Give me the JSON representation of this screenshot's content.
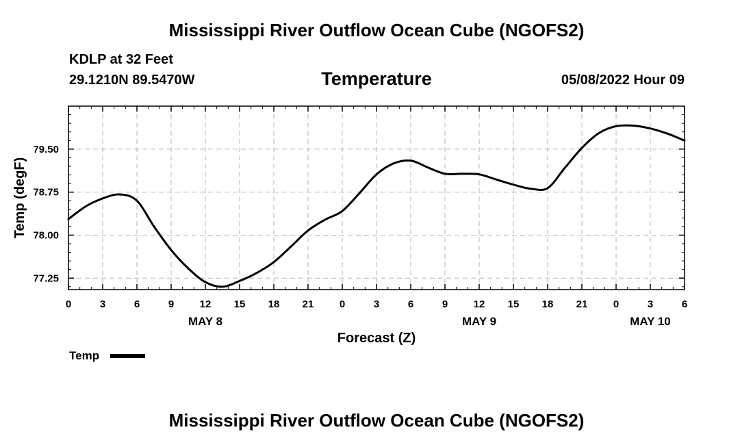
{
  "header": {
    "title": "Mississippi River Outflow Ocean Cube (NGOFS2)",
    "station": "KDLP at 32 Feet",
    "coords": "29.1210N  89.5470W",
    "variable": "Temperature",
    "run_time": "05/08/2022 Hour 09"
  },
  "footer": {
    "title": "Mississippi River Outflow Ocean Cube (NGOFS2)"
  },
  "chart_data": {
    "type": "line",
    "title": "Temperature",
    "xlabel": "Forecast (Z)",
    "ylabel": "Temp (degF)",
    "x_unit": "hours since May 8 00Z",
    "xlim": [
      0,
      54
    ],
    "ylim": [
      77.05,
      80.25
    ],
    "grid": true,
    "x_ticks": [
      {
        "value": 0,
        "label": "0"
      },
      {
        "value": 3,
        "label": "3"
      },
      {
        "value": 6,
        "label": "6"
      },
      {
        "value": 9,
        "label": "9"
      },
      {
        "value": 12,
        "label": "12"
      },
      {
        "value": 15,
        "label": "15"
      },
      {
        "value": 18,
        "label": "18"
      },
      {
        "value": 21,
        "label": "21"
      },
      {
        "value": 24,
        "label": "0"
      },
      {
        "value": 27,
        "label": "3"
      },
      {
        "value": 30,
        "label": "6"
      },
      {
        "value": 33,
        "label": "9"
      },
      {
        "value": 36,
        "label": "12"
      },
      {
        "value": 39,
        "label": "15"
      },
      {
        "value": 42,
        "label": "18"
      },
      {
        "value": 45,
        "label": "21"
      },
      {
        "value": 48,
        "label": "0"
      },
      {
        "value": 51,
        "label": "3"
      },
      {
        "value": 54,
        "label": "6"
      }
    ],
    "y_ticks": [
      {
        "value": 77.25,
        "label": "77.25"
      },
      {
        "value": 78.0,
        "label": "78.00"
      },
      {
        "value": 78.75,
        "label": "78.75"
      },
      {
        "value": 79.5,
        "label": "79.50"
      }
    ],
    "date_labels": [
      {
        "value": 12,
        "label": "MAY 8"
      },
      {
        "value": 36,
        "label": "MAY 9"
      },
      {
        "value": 51,
        "label": "MAY 10"
      }
    ],
    "series": [
      {
        "name": "Temp",
        "color": "#000000",
        "x": [
          0,
          1.5,
          3,
          4.5,
          6,
          7.5,
          9,
          10.5,
          12,
          13.5,
          15,
          16.5,
          18,
          19.5,
          21,
          22.5,
          24,
          25.5,
          27,
          28.5,
          30,
          31.5,
          33,
          34.5,
          36,
          37.5,
          39,
          40.5,
          42,
          43.5,
          45,
          46.5,
          48,
          49.5,
          51,
          52.5,
          54
        ],
        "y": [
          78.28,
          78.5,
          78.64,
          78.71,
          78.6,
          78.15,
          77.74,
          77.42,
          77.18,
          77.1,
          77.2,
          77.34,
          77.53,
          77.8,
          78.08,
          78.27,
          78.42,
          78.73,
          79.06,
          79.25,
          79.3,
          79.18,
          79.07,
          79.07,
          79.06,
          78.97,
          78.88,
          78.81,
          78.82,
          79.17,
          79.52,
          79.78,
          79.9,
          79.91,
          79.86,
          79.77,
          79.65
        ]
      }
    ],
    "legend": {
      "position": "bottom-left",
      "label": "Temp"
    }
  }
}
